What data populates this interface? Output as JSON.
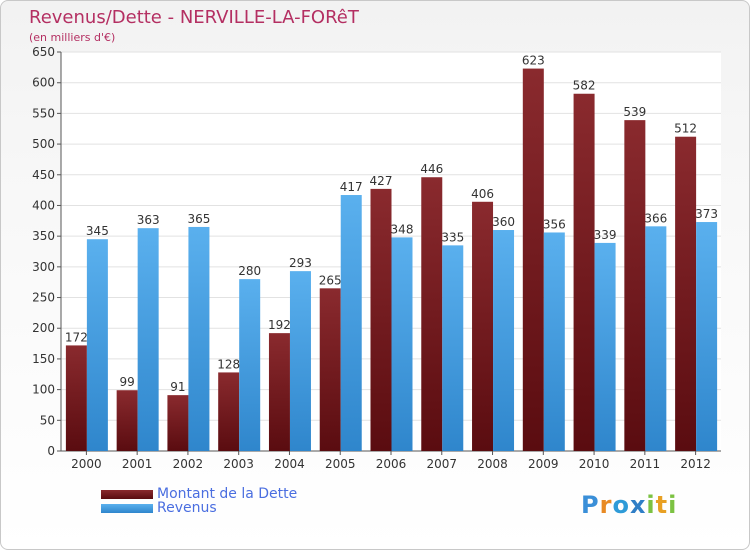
{
  "header": {
    "title": "Revenus/Dette - NERVILLE-LA-FORêT",
    "subtitle": "(en milliers d'€)"
  },
  "legend": {
    "dette_label": "Montant de la Dette",
    "revenus_label": "Revenus"
  },
  "logo": {
    "text": "Proxiti"
  },
  "colors": {
    "dette": "#7a1a1f",
    "revenus": "#4a9fe0",
    "title": "#b42f62",
    "legend_text": "#4a6ee0"
  },
  "chart_data": {
    "type": "bar",
    "title": "Revenus/Dette - NERVILLE-LA-FORêT",
    "subtitle": "(en milliers d'€)",
    "xlabel": "",
    "ylabel": "",
    "ylim": [
      0,
      650
    ],
    "yticks": [
      0,
      50,
      100,
      150,
      200,
      250,
      300,
      350,
      400,
      450,
      500,
      550,
      600,
      650
    ],
    "grid": true,
    "legend_position": "bottom-left",
    "categories": [
      "2000",
      "2001",
      "2002",
      "2003",
      "2004",
      "2005",
      "2006",
      "2007",
      "2008",
      "2009",
      "2010",
      "2011",
      "2012"
    ],
    "series": [
      {
        "name": "Montant de la Dette",
        "values": [
          172,
          99,
          91,
          128,
          192,
          265,
          427,
          446,
          406,
          623,
          582,
          539,
          512
        ]
      },
      {
        "name": "Revenus",
        "values": [
          345,
          363,
          365,
          280,
          293,
          417,
          348,
          335,
          360,
          356,
          339,
          366,
          373
        ]
      }
    ]
  }
}
